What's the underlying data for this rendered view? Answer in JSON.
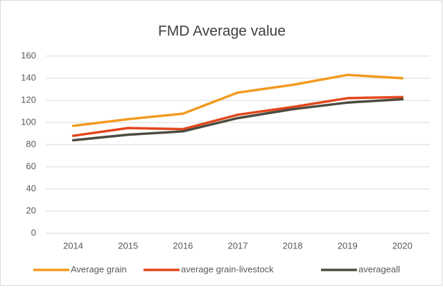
{
  "chart_data": {
    "type": "line",
    "title": "FMD Average value",
    "categories": [
      "2014",
      "2015",
      "2016",
      "2017",
      "2018",
      "2019",
      "2020"
    ],
    "series": [
      {
        "name": "Average grain",
        "color": "#f39a1e",
        "values": [
          97,
          103,
          108,
          127,
          134,
          143,
          140
        ]
      },
      {
        "name": "average grain-livestock",
        "color": "#e2461c",
        "values": [
          88,
          95,
          94,
          107,
          114,
          122,
          123
        ]
      },
      {
        "name": "averageall",
        "color": "#4b4b3f",
        "values": [
          84,
          89,
          92,
          104,
          112,
          118,
          121
        ]
      }
    ],
    "ylim": [
      0,
      160
    ],
    "yticks": [
      0,
      20,
      40,
      60,
      80,
      100,
      120,
      140,
      160
    ],
    "grid": true,
    "legend": "bottom"
  }
}
